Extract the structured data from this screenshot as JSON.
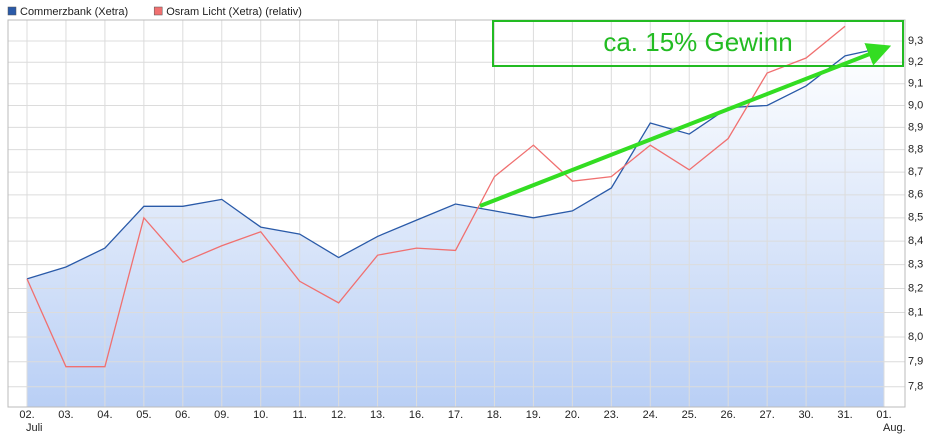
{
  "chart_data": {
    "type": "line",
    "categories": [
      "02.",
      "03.",
      "04.",
      "05.",
      "06.",
      "09.",
      "10.",
      "11.",
      "12.",
      "13.",
      "16.",
      "17.",
      "18.",
      "19.",
      "20.",
      "23.",
      "24.",
      "25.",
      "26.",
      "27.",
      "30.",
      "31.",
      "01."
    ],
    "month_labels": [
      "Juli",
      null,
      null,
      null,
      null,
      null,
      null,
      null,
      null,
      null,
      null,
      null,
      null,
      null,
      null,
      null,
      null,
      null,
      null,
      null,
      null,
      null,
      "Aug."
    ],
    "series": [
      {
        "name": "Commerzbank (Xetra)",
        "color": "#2a5aa8",
        "area": true,
        "values": [
          8.24,
          8.29,
          8.37,
          8.55,
          8.55,
          8.58,
          8.46,
          8.43,
          8.33,
          8.42,
          8.49,
          8.56,
          8.53,
          8.5,
          8.53,
          8.63,
          8.92,
          8.87,
          8.99,
          9.0,
          9.09,
          9.23,
          9.27
        ]
      },
      {
        "name": "Osram Licht (Xetra) (relativ)",
        "color": "#f07070",
        "area": false,
        "values": [
          8.24,
          7.88,
          7.88,
          8.5,
          8.31,
          8.38,
          8.44,
          8.23,
          8.14,
          8.34,
          8.37,
          8.36,
          8.68,
          8.82,
          8.66,
          8.68,
          8.82,
          8.71,
          8.85,
          9.15,
          9.22,
          9.37,
          null
        ]
      }
    ],
    "ylim": [
      7.72,
      9.4
    ],
    "log_scale": true,
    "grid": true,
    "yticks": [
      {
        "value": 7.8,
        "label": "7,8"
      },
      {
        "value": 7.9,
        "label": "7,9"
      },
      {
        "value": 8.0,
        "label": "8,0"
      },
      {
        "value": 8.1,
        "label": "8,1"
      },
      {
        "value": 8.2,
        "label": "8,2"
      },
      {
        "value": 8.3,
        "label": "8,3"
      },
      {
        "value": 8.4,
        "label": "8,4"
      },
      {
        "value": 8.5,
        "label": "8,5"
      },
      {
        "value": 8.6,
        "label": "8,6"
      },
      {
        "value": 8.7,
        "label": "8,7"
      },
      {
        "value": 8.8,
        "label": "8,8"
      },
      {
        "value": 8.9,
        "label": "8,9"
      },
      {
        "value": 9.0,
        "label": "9,0"
      },
      {
        "value": 9.1,
        "label": "9,1"
      },
      {
        "value": 9.2,
        "label": "9,2"
      },
      {
        "value": 9.3,
        "label": "9,3"
      }
    ],
    "annotation": "ca. 15% Gewinn"
  }
}
